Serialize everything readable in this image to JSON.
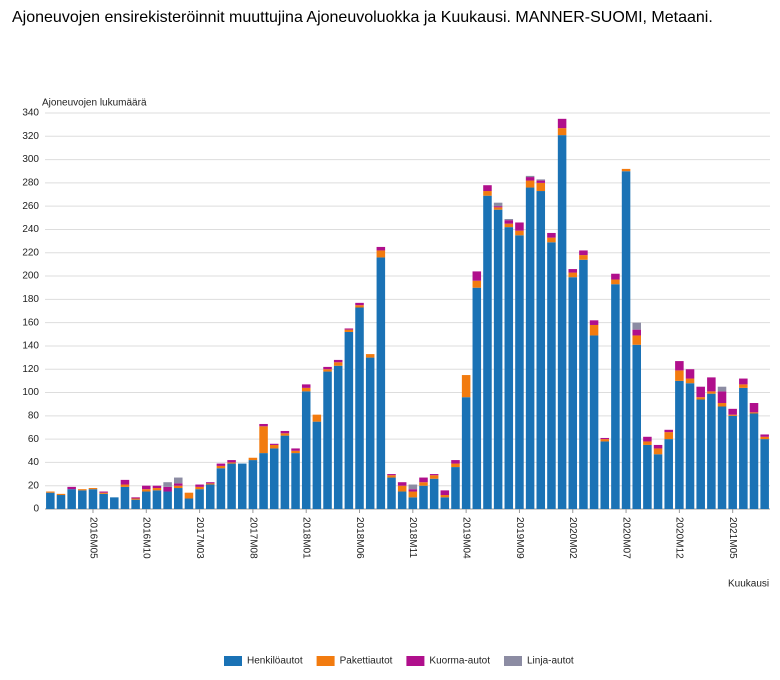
{
  "chart_data": {
    "type": "stacked_bar",
    "title": "Ajoneuvojen ensirekisteröinnit muuttujina Ajoneuvoluokka ja Kuukausi. MANNER-SUOMI, Metaani.",
    "y_label": "Ajoneuvojen lukumäärä",
    "x_label": "Kuukausi",
    "categories": [
      null,
      null,
      null,
      null,
      "2016M05",
      null,
      null,
      null,
      null,
      "2016M10",
      null,
      null,
      null,
      null,
      "2017M03",
      null,
      null,
      null,
      null,
      "2017M08",
      null,
      null,
      null,
      null,
      "2018M01",
      null,
      null,
      null,
      null,
      "2018M06",
      null,
      null,
      null,
      null,
      "2018M11",
      null,
      null,
      null,
      null,
      "2019M04",
      null,
      null,
      null,
      null,
      "2019M09",
      null,
      null,
      null,
      null,
      "2020M02",
      null,
      null,
      null,
      null,
      "2020M07",
      null,
      null,
      null,
      null,
      "2020M12",
      null,
      null,
      null,
      null,
      "2021M05",
      null,
      null,
      null
    ],
    "ylim": [
      0,
      340
    ],
    "yticks": [
      0,
      20,
      40,
      60,
      80,
      100,
      120,
      140,
      160,
      180,
      200,
      220,
      240,
      260,
      280,
      300,
      320,
      340
    ],
    "grid": true,
    "legend": "bottom",
    "series": [
      {
        "name": "Henkilöautot",
        "color": "#1a72b5",
        "values": [
          14,
          12,
          17,
          16,
          17,
          13,
          10,
          19,
          8,
          15,
          16,
          15,
          18,
          9,
          17,
          21,
          35,
          39,
          39,
          42,
          48,
          52,
          63,
          48,
          101,
          75,
          118,
          123,
          152,
          173,
          130,
          216,
          27,
          15,
          10,
          20,
          26,
          10,
          36,
          96,
          190,
          269,
          257,
          242,
          235,
          276,
          273,
          229,
          321,
          199,
          214,
          149,
          58,
          193,
          290,
          141,
          55,
          47,
          60,
          110,
          108,
          94,
          99,
          88,
          80,
          104,
          82,
          60
        ]
      },
      {
        "name": "Pakettiautot",
        "color": "#f27b0f",
        "values": [
          1,
          1,
          0,
          1,
          1,
          1,
          0,
          2,
          1,
          2,
          2,
          0,
          2,
          5,
          2,
          1,
          2,
          1,
          0,
          2,
          23,
          3,
          2,
          2,
          3,
          6,
          2,
          3,
          2,
          2,
          3,
          6,
          2,
          5,
          5,
          3,
          3,
          2,
          3,
          19,
          6,
          4,
          2,
          3,
          4,
          6,
          7,
          4,
          6,
          4,
          4,
          9,
          2,
          4,
          2,
          8,
          3,
          5,
          6,
          9,
          4,
          2,
          2,
          3,
          1,
          3,
          1,
          2
        ]
      },
      {
        "name": "Kuorma-autot",
        "color": "#b00f8c",
        "values": [
          0,
          0,
          2,
          0,
          0,
          1,
          0,
          4,
          1,
          3,
          2,
          4,
          2,
          0,
          2,
          1,
          2,
          2,
          0,
          0,
          2,
          1,
          2,
          2,
          3,
          0,
          2,
          2,
          1,
          2,
          0,
          3,
          1,
          3,
          2,
          4,
          1,
          4,
          3,
          0,
          8,
          5,
          1,
          3,
          7,
          3,
          2,
          4,
          8,
          3,
          4,
          4,
          1,
          5,
          0,
          5,
          4,
          3,
          2,
          8,
          8,
          9,
          12,
          10,
          5,
          5,
          8,
          2
        ]
      },
      {
        "name": "Linja-autot",
        "color": "#8c8ca3",
        "values": [
          0,
          0,
          0,
          0,
          0,
          0,
          0,
          0,
          0,
          0,
          0,
          4,
          5,
          0,
          0,
          0,
          0,
          0,
          0,
          0,
          0,
          0,
          0,
          0,
          0,
          0,
          0,
          0,
          0,
          0,
          0,
          0,
          0,
          0,
          4,
          0,
          0,
          0,
          0,
          0,
          0,
          0,
          3,
          1,
          0,
          1,
          1,
          0,
          0,
          0,
          0,
          0,
          0,
          0,
          0,
          6,
          0,
          0,
          0,
          0,
          0,
          0,
          0,
          4,
          0,
          0,
          0,
          0
        ]
      }
    ]
  }
}
